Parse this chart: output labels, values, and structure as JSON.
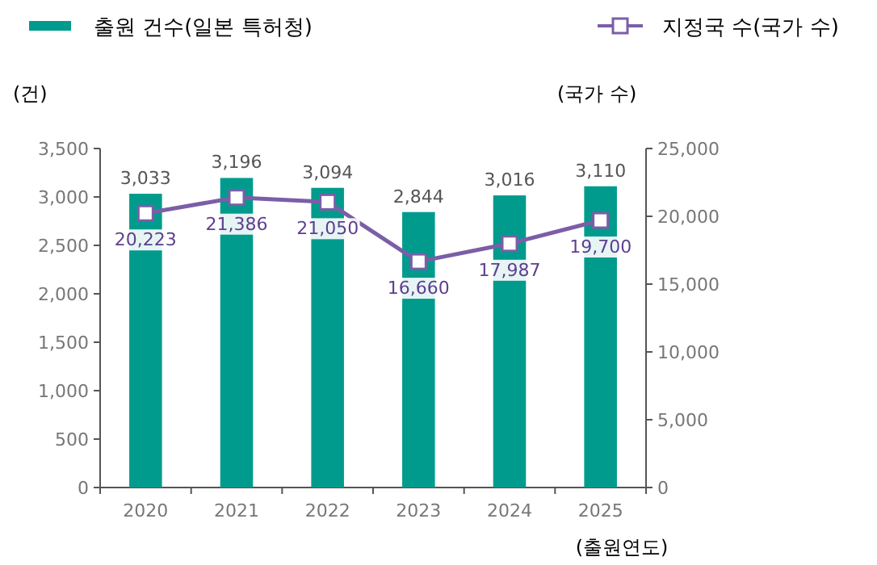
{
  "chart_data": {
    "type": "bar",
    "categories": [
      "2020",
      "2021",
      "2022",
      "2023",
      "2024",
      "2025"
    ],
    "series": [
      {
        "name": "출원 건수(일본 특허청)",
        "color": "#009b8d",
        "values": [
          3033,
          3196,
          3094,
          2844,
          3016,
          3110
        ],
        "value_labels": [
          "3,033",
          "3,196",
          "3,094",
          "2,844",
          "3,016",
          "3,110"
        ]
      },
      {
        "name": "지정국 수(국가 수)",
        "type": "line",
        "axis": "y2",
        "color": "#7b5ea7",
        "marker": "square",
        "values": [
          20223,
          21386,
          21050,
          16660,
          17987,
          19700
        ],
        "value_labels": [
          "20,223",
          "21,386",
          "21,050",
          "16,660",
          "17,987",
          "19,700"
        ]
      }
    ],
    "xlabel": "(출원연도)",
    "ylabel": "(건)",
    "y2label": "(국가 수)",
    "ylim": [
      0,
      3500
    ],
    "yticks": [
      0,
      500,
      {
        "value": 1000,
        "label": "1,000"
      },
      {
        "value": 1500,
        "label": "1,500"
      },
      {
        "value": 2000,
        "label": "2,000"
      },
      {
        "value": 2500,
        "label": "2,500"
      },
      {
        "value": 3000,
        "label": "3,000"
      },
      {
        "value": 3500,
        "label": "3,500"
      }
    ],
    "y2lim": [
      0,
      25000
    ],
    "y2ticks": [
      0,
      {
        "value": 5000,
        "label": "5,000"
      },
      {
        "value": 10000,
        "label": "10,000"
      },
      {
        "value": 15000,
        "label": "15,000"
      },
      {
        "value": 20000,
        "label": "20,000"
      },
      {
        "value": 25000,
        "label": "25,000"
      }
    ],
    "legend": "top",
    "grid": false
  }
}
